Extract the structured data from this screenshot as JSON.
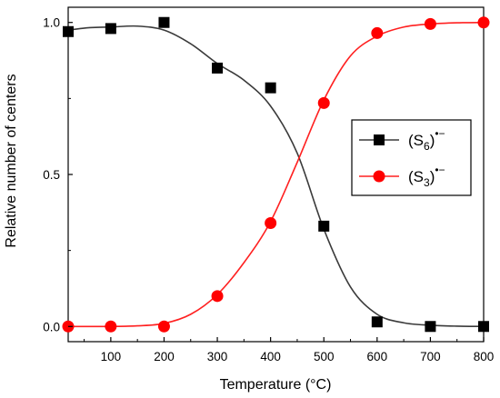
{
  "chart_data": {
    "type": "scatter",
    "xlabel": "Temperature (°C)",
    "ylabel": "Relative number of centers",
    "xlim": [
      20,
      800
    ],
    "ylim": [
      -0.05,
      1.05
    ],
    "x_ticks": [
      100,
      200,
      300,
      400,
      500,
      600,
      700,
      800
    ],
    "x_tick_labels": [
      "100",
      "200",
      "300",
      "400",
      "500",
      "600",
      "700",
      "800"
    ],
    "y_ticks": [
      0.0,
      0.5,
      1.0
    ],
    "y_tick_labels": [
      "0.0",
      "0.5",
      "1.0"
    ],
    "legend_position": "right",
    "series": [
      {
        "label_base": "(S",
        "label_sub": "6",
        "label_close": ")",
        "label_sup": "•−",
        "color": "#000000",
        "line_color": "#3a3a3a",
        "marker": "square",
        "x": [
          20,
          100,
          200,
          300,
          400,
          500,
          600,
          700,
          800
        ],
        "values": [
          0.97,
          0.98,
          1.0,
          0.85,
          0.785,
          0.33,
          0.015,
          0.0,
          0.0
        ],
        "fit_x": [
          20,
          60,
          100,
          150,
          200,
          250,
          300,
          350,
          400,
          450,
          500,
          550,
          600,
          650,
          700,
          750,
          800
        ],
        "fit_y": [
          0.975,
          0.983,
          0.985,
          0.988,
          0.975,
          0.93,
          0.865,
          0.81,
          0.725,
          0.57,
          0.32,
          0.13,
          0.04,
          0.012,
          0.004,
          0.001,
          0.0
        ]
      },
      {
        "label_base": "(S",
        "label_sub": "3",
        "label_close": ")",
        "label_sup": "•−",
        "color": "#ff0000",
        "line_color": "#ff2020",
        "marker": "circle",
        "x": [
          20,
          100,
          200,
          300,
          400,
          500,
          600,
          700,
          800
        ],
        "values": [
          0.0,
          0.0,
          0.0,
          0.1,
          0.34,
          0.735,
          0.965,
          0.995,
          1.0
        ],
        "fit_x": [
          20,
          60,
          100,
          150,
          200,
          250,
          300,
          350,
          400,
          450,
          500,
          550,
          600,
          650,
          700,
          750,
          800
        ],
        "fit_y": [
          0.0,
          0.0,
          0.0,
          0.002,
          0.01,
          0.04,
          0.105,
          0.21,
          0.345,
          0.54,
          0.745,
          0.89,
          0.955,
          0.985,
          0.995,
          0.999,
          1.0
        ]
      }
    ]
  }
}
